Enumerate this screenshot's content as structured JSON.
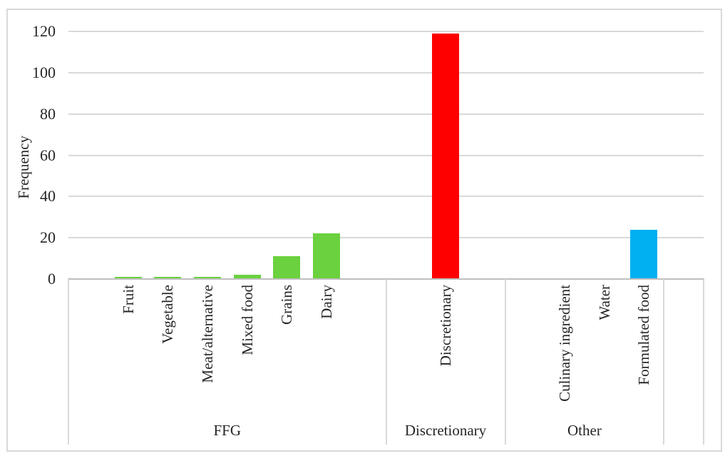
{
  "figure": {
    "background": "#ffffff",
    "border_color": "#d9d9d9"
  },
  "chart_data": {
    "type": "bar",
    "ylabel": "Frequency",
    "xlabel": "",
    "ylim": [
      0,
      120
    ],
    "yticks": [
      0,
      20,
      40,
      60,
      80,
      100,
      120
    ],
    "grid": true,
    "legend": false,
    "categories": [
      "Fruit",
      "Vegetable",
      "Meat/alternative",
      "Mixed food",
      "Grains",
      "Dairy",
      "Discretionary",
      "Culinary ingredient",
      "Water",
      "Formulated food"
    ],
    "values": [
      1,
      1,
      1,
      2,
      11,
      22,
      119,
      0,
      0,
      24
    ],
    "bar_colors": [
      "#6bd13e",
      "#6bd13e",
      "#6bd13e",
      "#6bd13e",
      "#6bd13e",
      "#6bd13e",
      "#ff0000",
      "#00b0f0",
      "#00b0f0",
      "#00b0f0"
    ],
    "category_slots": [
      1,
      2,
      3,
      4,
      5,
      6,
      9,
      12,
      13,
      14
    ],
    "total_slots": 16,
    "groups": [
      {
        "label": "FFG",
        "slot_start": 0,
        "slot_end": 8
      },
      {
        "label": "Discretionary",
        "slot_start": 8,
        "slot_end": 11
      },
      {
        "label": "Other",
        "slot_start": 11,
        "slot_end": 15
      },
      {
        "label": "",
        "slot_start": 15,
        "slot_end": 16
      }
    ],
    "colors": {
      "ffg_green": "#6bd13e",
      "discretionary_red": "#ff0000",
      "other_blue": "#00b0f0",
      "gridline": "#d9d9d9",
      "axis_line": "#bfbfbf",
      "text": "#262626"
    }
  }
}
